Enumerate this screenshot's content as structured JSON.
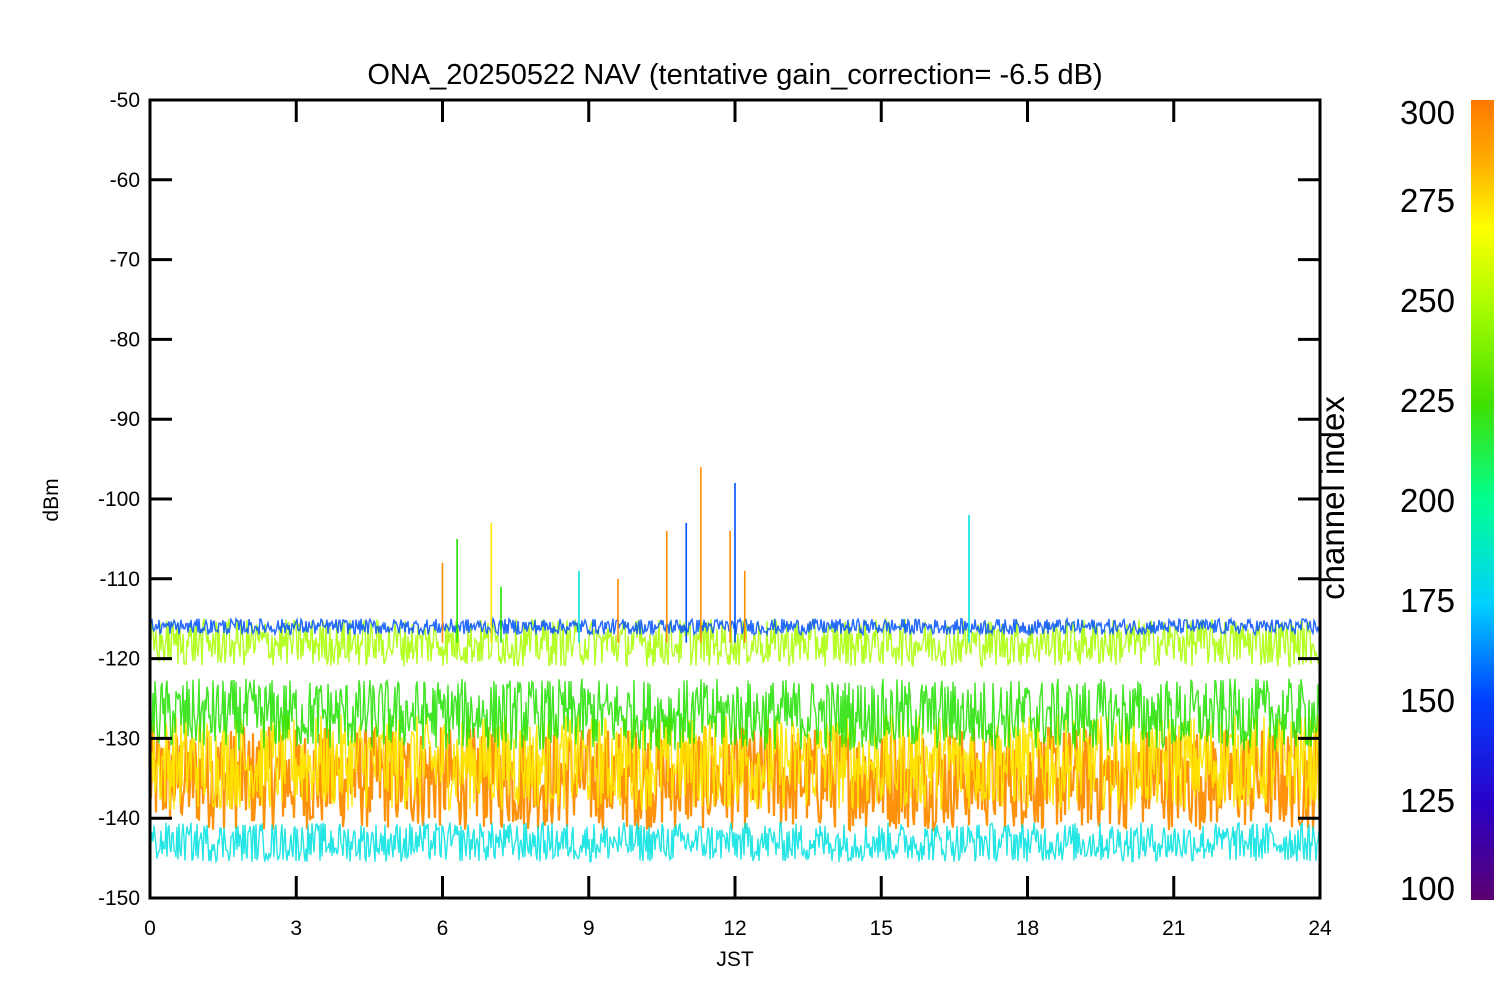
{
  "chart_data": {
    "type": "line",
    "title": "ONA_20250522 NAV (tentative gain_correction= -6.5 dB)",
    "xlabel": "JST",
    "ylabel": "dBm",
    "xlim": [
      0,
      24
    ],
    "ylim": [
      -150,
      -50
    ],
    "x_ticks": [
      "0",
      "3",
      "6",
      "9",
      "12",
      "15",
      "18",
      "21",
      "24"
    ],
    "y_ticks": [
      "-50",
      "-60",
      "-70",
      "-80",
      "-90",
      "-100",
      "-110",
      "-120",
      "-130",
      "-140",
      "-150"
    ],
    "grid": false,
    "colorbar": {
      "label": "channel index",
      "range": [
        100,
        300
      ],
      "ticks": [
        "300",
        "275",
        "250",
        "225",
        "200",
        "175",
        "150",
        "125",
        "100"
      ],
      "colormap": [
        "#5a006e",
        "#2a00c8",
        "#0040ff",
        "#00d0ff",
        "#00ff90",
        "#40e000",
        "#b0ff00",
        "#ffff00",
        "#ffb000",
        "#ff7800"
      ]
    },
    "bands": [
      {
        "channel_index": 300,
        "color": "#ff8c00",
        "level_dBm": -135,
        "min_dBm": -143,
        "max_dBm": -130
      },
      {
        "channel_index": 270,
        "color": "#ffe600",
        "level_dBm": -133,
        "min_dBm": -140,
        "max_dBm": -128
      },
      {
        "channel_index": 240,
        "color": "#20e000",
        "level_dBm": -127,
        "min_dBm": -130,
        "max_dBm": -121
      },
      {
        "channel_index": 255,
        "color": "#a8ff00",
        "level_dBm": -118,
        "min_dBm": -121,
        "max_dBm": -115
      },
      {
        "channel_index": 150,
        "color": "#0050ff",
        "level_dBm": -116,
        "min_dBm": -117,
        "max_dBm": -115
      },
      {
        "channel_index": 180,
        "color": "#00e0e0",
        "level_dBm": -143,
        "min_dBm": -146,
        "max_dBm": -141
      }
    ],
    "spikes": [
      {
        "x": 6.0,
        "y": -108,
        "color": "#ff8c00"
      },
      {
        "x": 6.3,
        "y": -105,
        "color": "#20e000"
      },
      {
        "x": 7.0,
        "y": -103,
        "color": "#ffe600"
      },
      {
        "x": 7.2,
        "y": -111,
        "color": "#20e000"
      },
      {
        "x": 8.8,
        "y": -109,
        "color": "#00e0e0"
      },
      {
        "x": 9.6,
        "y": -110,
        "color": "#ff8c00"
      },
      {
        "x": 10.6,
        "y": -104,
        "color": "#ff8c00"
      },
      {
        "x": 11.0,
        "y": -103,
        "color": "#0050ff"
      },
      {
        "x": 11.3,
        "y": -96,
        "color": "#ff8c00"
      },
      {
        "x": 11.9,
        "y": -104,
        "color": "#ff8c00"
      },
      {
        "x": 12.0,
        "y": -98,
        "color": "#0050ff"
      },
      {
        "x": 12.2,
        "y": -109,
        "color": "#ff8c00"
      },
      {
        "x": 16.8,
        "y": -102,
        "color": "#00e0e0"
      }
    ]
  }
}
